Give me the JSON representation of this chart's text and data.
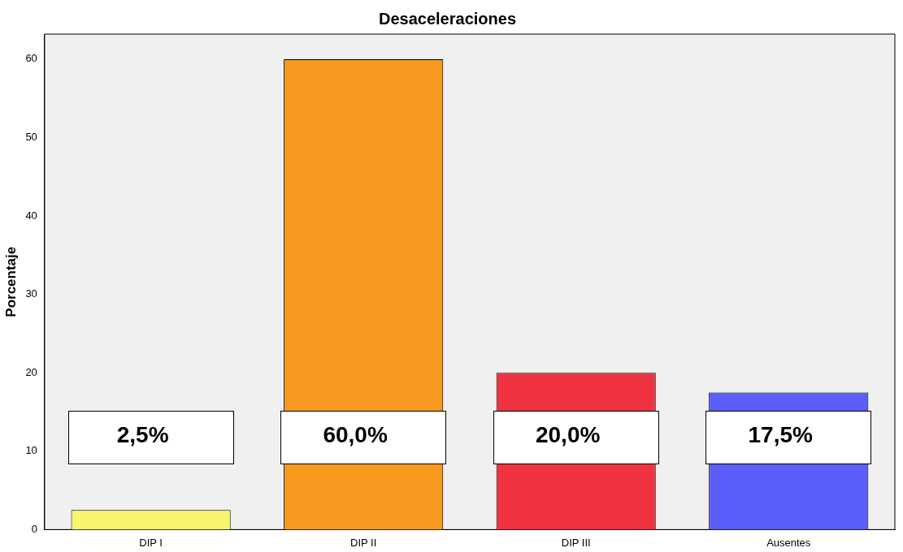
{
  "chart_data": {
    "type": "bar",
    "title": "Desaceleraciones",
    "ylabel": "Porcentaje",
    "categories": [
      "DIP I",
      "DIP II",
      "DIP III",
      "Ausentes"
    ],
    "values": [
      2.5,
      60.0,
      20.0,
      17.5
    ],
    "colors": [
      "#f7f56e",
      "#f7991f",
      "#ef3340",
      "#5b5ef8"
    ],
    "value_labels": [
      "2,5%",
      "60,0%",
      "20,0%",
      "17,5%"
    ],
    "ylim": [
      0,
      63.2
    ],
    "yticks": [
      0,
      10,
      20,
      30,
      40,
      50,
      60
    ],
    "grid": false,
    "legend": false
  }
}
